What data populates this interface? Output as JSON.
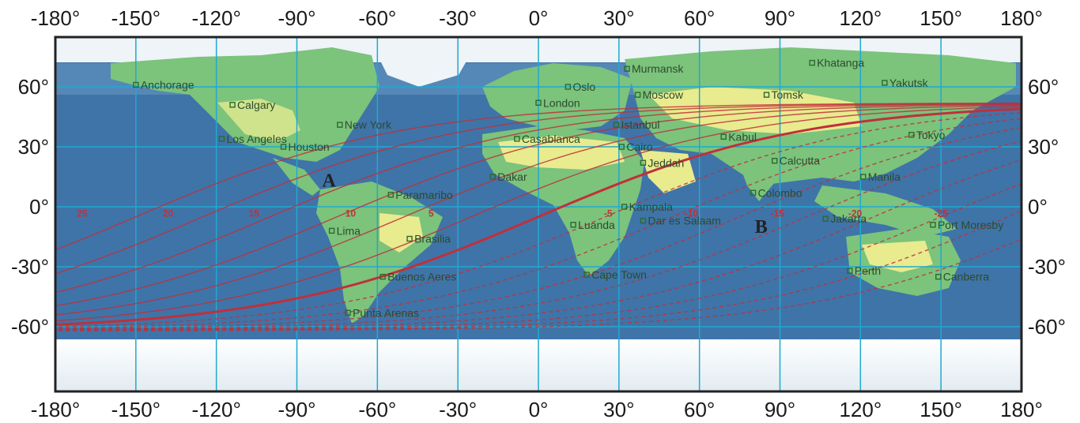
{
  "map": {
    "x_axis_top": [
      "-180°",
      "-150°",
      "-120°",
      "-90°",
      "-60°",
      "-30°",
      "0°",
      "30°",
      "60°",
      "90°",
      "120°",
      "150°",
      "180°"
    ],
    "x_axis_bottom": [
      "-180°",
      "-150°",
      "-120°",
      "-90°",
      "-60°",
      "-30°",
      "0°",
      "30°",
      "60°",
      "90°",
      "120°",
      "150°",
      "180°"
    ],
    "y_axis_left": [
      "60°",
      "30°",
      "0°",
      "-30°",
      "-60°"
    ],
    "y_axis_right": [
      "60°",
      "30°",
      "0°",
      "-30°",
      "-60°"
    ],
    "y_axis_values": [
      60,
      30,
      0,
      -30,
      -60
    ],
    "x_axis_values": [
      -180,
      -150,
      -120,
      -90,
      -60,
      -30,
      0,
      30,
      60,
      90,
      120,
      150,
      180
    ],
    "cities": [
      {
        "name": "Anchorage",
        "lon": -150,
        "lat": 61
      },
      {
        "name": "Calgary",
        "lon": -114,
        "lat": 51
      },
      {
        "name": "Los Angeles",
        "lon": -118,
        "lat": 34
      },
      {
        "name": "Houston",
        "lon": -95,
        "lat": 30
      },
      {
        "name": "New York",
        "lon": -74,
        "lat": 41
      },
      {
        "name": "Lima",
        "lon": -77,
        "lat": -12
      },
      {
        "name": "Paramaribo",
        "lon": -55,
        "lat": 6
      },
      {
        "name": "Brasilia",
        "lon": -48,
        "lat": -16
      },
      {
        "name": "Buenos Aeres",
        "lon": -58,
        "lat": -35
      },
      {
        "name": "Punta Arenas",
        "lon": -71,
        "lat": -53
      },
      {
        "name": "Dakar",
        "lon": -17,
        "lat": 15
      },
      {
        "name": "Casablanca",
        "lon": -8,
        "lat": 34
      },
      {
        "name": "London",
        "lon": 0,
        "lat": 52
      },
      {
        "name": "Oslo",
        "lon": 11,
        "lat": 60
      },
      {
        "name": "Murmansk",
        "lon": 33,
        "lat": 69
      },
      {
        "name": "Moscow",
        "lon": 37,
        "lat": 56
      },
      {
        "name": "Istanbul",
        "lon": 29,
        "lat": 41
      },
      {
        "name": "Cairo",
        "lon": 31,
        "lat": 30
      },
      {
        "name": "Jeddah",
        "lon": 39,
        "lat": 22
      },
      {
        "name": "Kampala",
        "lon": 32,
        "lat": 0
      },
      {
        "name": "Luanda",
        "lon": 13,
        "lat": -9
      },
      {
        "name": "Dar es Salaam",
        "lon": 39,
        "lat": -7
      },
      {
        "name": "Cape Town",
        "lon": 18,
        "lat": -34
      },
      {
        "name": "Kabul",
        "lon": 69,
        "lat": 35
      },
      {
        "name": "Tomsk",
        "lon": 85,
        "lat": 56
      },
      {
        "name": "Khatanga",
        "lon": 102,
        "lat": 72
      },
      {
        "name": "Yakutsk",
        "lon": 129,
        "lat": 62
      },
      {
        "name": "Tokyo",
        "lon": 139,
        "lat": 36
      },
      {
        "name": "Calcutta",
        "lon": 88,
        "lat": 23
      },
      {
        "name": "Colombo",
        "lon": 80,
        "lat": 7
      },
      {
        "name": "Manila",
        "lon": 121,
        "lat": 15
      },
      {
        "name": "Jakarta",
        "lon": 107,
        "lat": -6
      },
      {
        "name": "Perth",
        "lon": 116,
        "lat": -32
      },
      {
        "name": "Port Moresby",
        "lon": 147,
        "lat": -9
      },
      {
        "name": "Canberra",
        "lon": 149,
        "lat": -35
      }
    ],
    "regions": [
      {
        "name": "A",
        "lon": -78,
        "lat": 10
      },
      {
        "name": "B",
        "lon": 83,
        "lat": -13
      }
    ],
    "curve_labels": [
      {
        "text": "25",
        "lon": -170,
        "lat": -1
      },
      {
        "text": "20",
        "lon": -138,
        "lat": -1
      },
      {
        "text": "15",
        "lon": -106,
        "lat": -1
      },
      {
        "text": "10",
        "lon": -70,
        "lat": -1
      },
      {
        "text": "5",
        "lon": -40,
        "lat": -1
      },
      {
        "text": "-5",
        "lon": 26,
        "lat": -1
      },
      {
        "text": "-10",
        "lon": 57,
        "lat": -1
      },
      {
        "text": "-15",
        "lon": 89,
        "lat": -1
      },
      {
        "text": "-20",
        "lon": 118,
        "lat": -1
      },
      {
        "text": "-25",
        "lon": 150,
        "lat": -1
      }
    ],
    "colors": {
      "ocean": "#3f74a8",
      "land_low": "#7cc37c",
      "land_high": "#e8eb8e",
      "ice": "#eef4f7",
      "grid": "#1fa9d2",
      "curve": "#c0303a",
      "border": "#222222"
    }
  }
}
